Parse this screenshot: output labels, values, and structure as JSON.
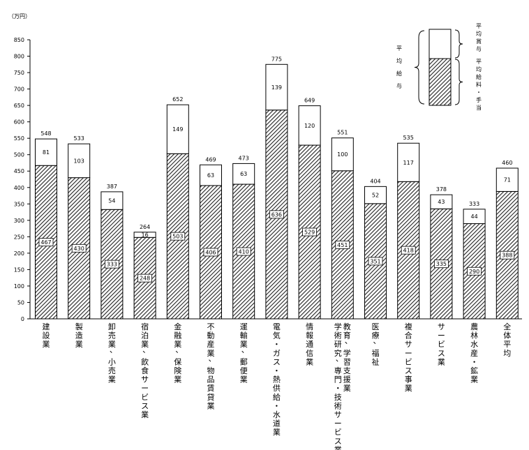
{
  "chart_data": {
    "type": "bar",
    "stacked": true,
    "unit_label": "（万円）",
    "ylim": [
      0,
      850
    ],
    "yticks": [
      0,
      50,
      100,
      150,
      200,
      250,
      300,
      350,
      400,
      450,
      500,
      550,
      600,
      650,
      700,
      750,
      800,
      850
    ],
    "grid": false,
    "categories": [
      "建設業",
      "製造業",
      "卸売業，小売業",
      "宿泊業，飲食サービス業",
      "金融業，保険業",
      "不動産業，物品賃貸業",
      "運輸業，郵便業",
      "電気・ガス・熱供給・水道業",
      "情報通信業",
      "学術研究，専門・技術サービス業・教育，学習支援業",
      "医療，福祉",
      "複合サービス事業",
      "サービス業",
      "農林水産・鉱業",
      "全体平均"
    ],
    "category_lines": [
      [
        "建設業"
      ],
      [
        "製造業"
      ],
      [
        "卸売業，小売業"
      ],
      [
        "宿泊業，飲食サービス業"
      ],
      [
        "金融業，保険業"
      ],
      [
        "不動産業，物品賃貸業"
      ],
      [
        "運輸業，郵便業"
      ],
      [
        "電気・ガス・熱供給・水道業"
      ],
      [
        "情報通信業"
      ],
      [
        "学術研究，専門・技術サービス業・",
        "教育，学習支援業"
      ],
      [
        "医療，福祉"
      ],
      [
        "複合サービス事業"
      ],
      [
        "サービス業"
      ],
      [
        "農林水産・鉱業"
      ],
      [
        "全体平均"
      ]
    ],
    "series": [
      {
        "name": "平均給料・手当",
        "values": [
          467,
          430,
          333,
          248,
          503,
          406,
          410,
          636,
          529,
          451,
          351,
          418,
          335,
          290,
          388
        ],
        "fill": "hatched"
      },
      {
        "name": "平均賞与",
        "values": [
          81,
          103,
          54,
          16,
          149,
          63,
          63,
          139,
          120,
          100,
          52,
          117,
          43,
          44,
          71
        ],
        "fill": "white"
      }
    ],
    "totals": [
      548,
      533,
      387,
      264,
      652,
      469,
      473,
      775,
      649,
      551,
      404,
      535,
      378,
      333,
      460
    ],
    "legend": {
      "placement": "top-right",
      "outer_label": "平均給与",
      "items": [
        "平均賞与",
        "平均給料・手当"
      ]
    }
  }
}
